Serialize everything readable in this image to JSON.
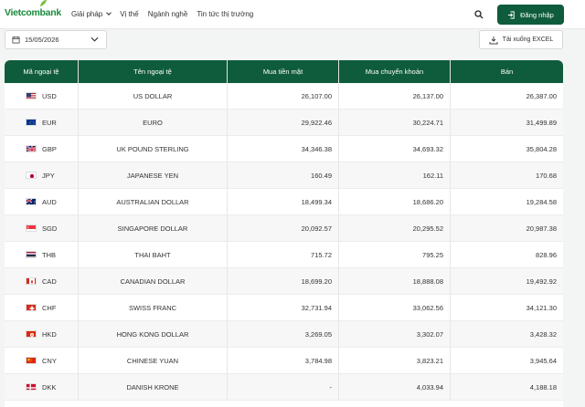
{
  "header": {
    "logo_text": "Vietcombank",
    "nav": [
      {
        "label": "Giải pháp",
        "dropdown": true
      },
      {
        "label": "Vị thế",
        "dropdown": false
      },
      {
        "label": "Ngành nghề",
        "dropdown": false
      },
      {
        "label": "Tin tức thị trường",
        "dropdown": false
      }
    ],
    "login_label": "Đăng nhập"
  },
  "toolbar": {
    "date_value": "15/05/2026",
    "excel_label": "Tải xuống EXCEL"
  },
  "table": {
    "columns": [
      "Mã ngoại tệ",
      "Tên ngoại tệ",
      "Mua tiền mặt",
      "Mua chuyển khoản",
      "Bán"
    ],
    "rows": [
      {
        "code": "USD",
        "name": "US DOLLAR",
        "cash": "26,107.00",
        "transfer": "26,137.00",
        "sell": "26,387.00",
        "flag": "us-flag"
      },
      {
        "code": "EUR",
        "name": "EURO",
        "cash": "29,922.46",
        "transfer": "30,224.71",
        "sell": "31,499.89",
        "flag": "eu-flag"
      },
      {
        "code": "GBP",
        "name": "UK POUND STERLING",
        "cash": "34,346.38",
        "transfer": "34,693.32",
        "sell": "35,804.28",
        "flag": "uk-flag"
      },
      {
        "code": "JPY",
        "name": "JAPANESE YEN",
        "cash": "160.49",
        "transfer": "162.11",
        "sell": "170.68",
        "flag": "jp-flag"
      },
      {
        "code": "AUD",
        "name": "AUSTRALIAN DOLLAR",
        "cash": "18,499.34",
        "transfer": "18,686.20",
        "sell": "19,284.58",
        "flag": "au-flag"
      },
      {
        "code": "SGD",
        "name": "SINGAPORE DOLLAR",
        "cash": "20,092.57",
        "transfer": "20,295.52",
        "sell": "20,987.38",
        "flag": "sg-flag"
      },
      {
        "code": "THB",
        "name": "THAI BAHT",
        "cash": "715.72",
        "transfer": "795.25",
        "sell": "828.96",
        "flag": "th-flag"
      },
      {
        "code": "CAD",
        "name": "CANADIAN DOLLAR",
        "cash": "18,699.20",
        "transfer": "18,888.08",
        "sell": "19,492.92",
        "flag": "ca-flag"
      },
      {
        "code": "CHF",
        "name": "SWISS FRANC",
        "cash": "32,731.94",
        "transfer": "33,062.56",
        "sell": "34,121.30",
        "flag": "ch-flag"
      },
      {
        "code": "HKD",
        "name": "HONG KONG DOLLAR",
        "cash": "3,269.05",
        "transfer": "3,302.07",
        "sell": "3,428.32",
        "flag": "hk-flag"
      },
      {
        "code": "CNY",
        "name": "CHINESE YUAN",
        "cash": "3,784.98",
        "transfer": "3,823.21",
        "sell": "3,945.64",
        "flag": "cn-flag"
      },
      {
        "code": "DKK",
        "name": "DANISH KRONE",
        "cash": "-",
        "transfer": "4,033.94",
        "sell": "4,188.18",
        "flag": "dk-flag"
      }
    ]
  },
  "colors": {
    "brand_green": "#0f5c3c",
    "logo_green": "#1a8a3a"
  }
}
